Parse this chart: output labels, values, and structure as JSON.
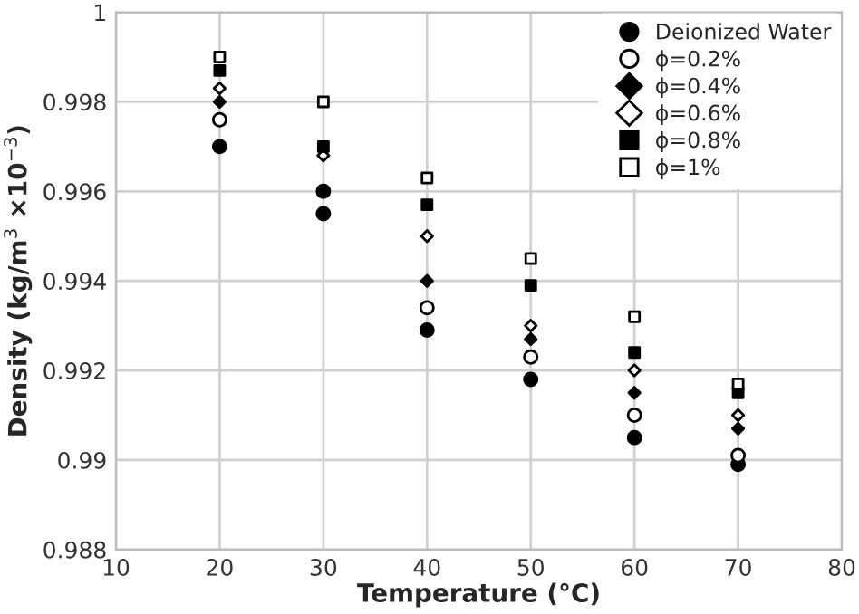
{
  "chart_data": {
    "type": "scatter",
    "xlabel": "Temperature (°C)",
    "ylabel": "Density (kg/m$^{3}$ ×10$^{−3}$)",
    "x": [
      20,
      30,
      40,
      50,
      60,
      70
    ],
    "series": [
      {
        "name": "Deionized Water",
        "color": "#000000",
        "marker": "circle",
        "values": [
          0.997,
          0.9955,
          0.9929,
          0.9918,
          0.9905,
          0.9899
        ]
      },
      {
        "name": "ϕ=0.2%",
        "color": "#ffffff",
        "marker": "circle",
        "values": [
          0.9976,
          0.996,
          0.9934,
          0.9923,
          0.991,
          0.9901
        ]
      },
      {
        "name": "ϕ=0.4%",
        "color": "#000000",
        "marker": "diamond",
        "values": [
          0.998,
          0.996,
          0.994,
          0.9927,
          0.9915,
          0.9907
        ]
      },
      {
        "name": "ϕ=0.6%",
        "color": "#ffffff",
        "marker": "diamond",
        "values": [
          0.9983,
          0.9968,
          0.995,
          0.993,
          0.992,
          0.991
        ]
      },
      {
        "name": "ϕ=0.8%",
        "color": "#000000",
        "marker": "square",
        "values": [
          0.9987,
          0.997,
          0.9957,
          0.9939,
          0.9924,
          0.9915
        ]
      },
      {
        "name": "ϕ=1%",
        "color": "#ffffff",
        "marker": "square",
        "values": [
          0.999,
          0.998,
          0.9963,
          0.9945,
          0.9932,
          0.9917
        ]
      }
    ],
    "xlim": [
      10,
      80
    ],
    "xticks": [
      10,
      20,
      30,
      40,
      50,
      60,
      70,
      80
    ],
    "ylim": [
      0.988,
      1
    ],
    "yticks": [
      {
        "value": 0.988,
        "label": "0.988"
      },
      {
        "value": 0.99,
        "label": "0.99"
      },
      {
        "value": 0.992,
        "label": "0.992"
      },
      {
        "value": 0.994,
        "label": "0.994"
      },
      {
        "value": 0.996,
        "label": "0.996"
      },
      {
        "value": 0.998,
        "label": "0.998"
      },
      {
        "value": 1,
        "label": "1"
      }
    ],
    "grid": true,
    "legend": "top right"
  }
}
